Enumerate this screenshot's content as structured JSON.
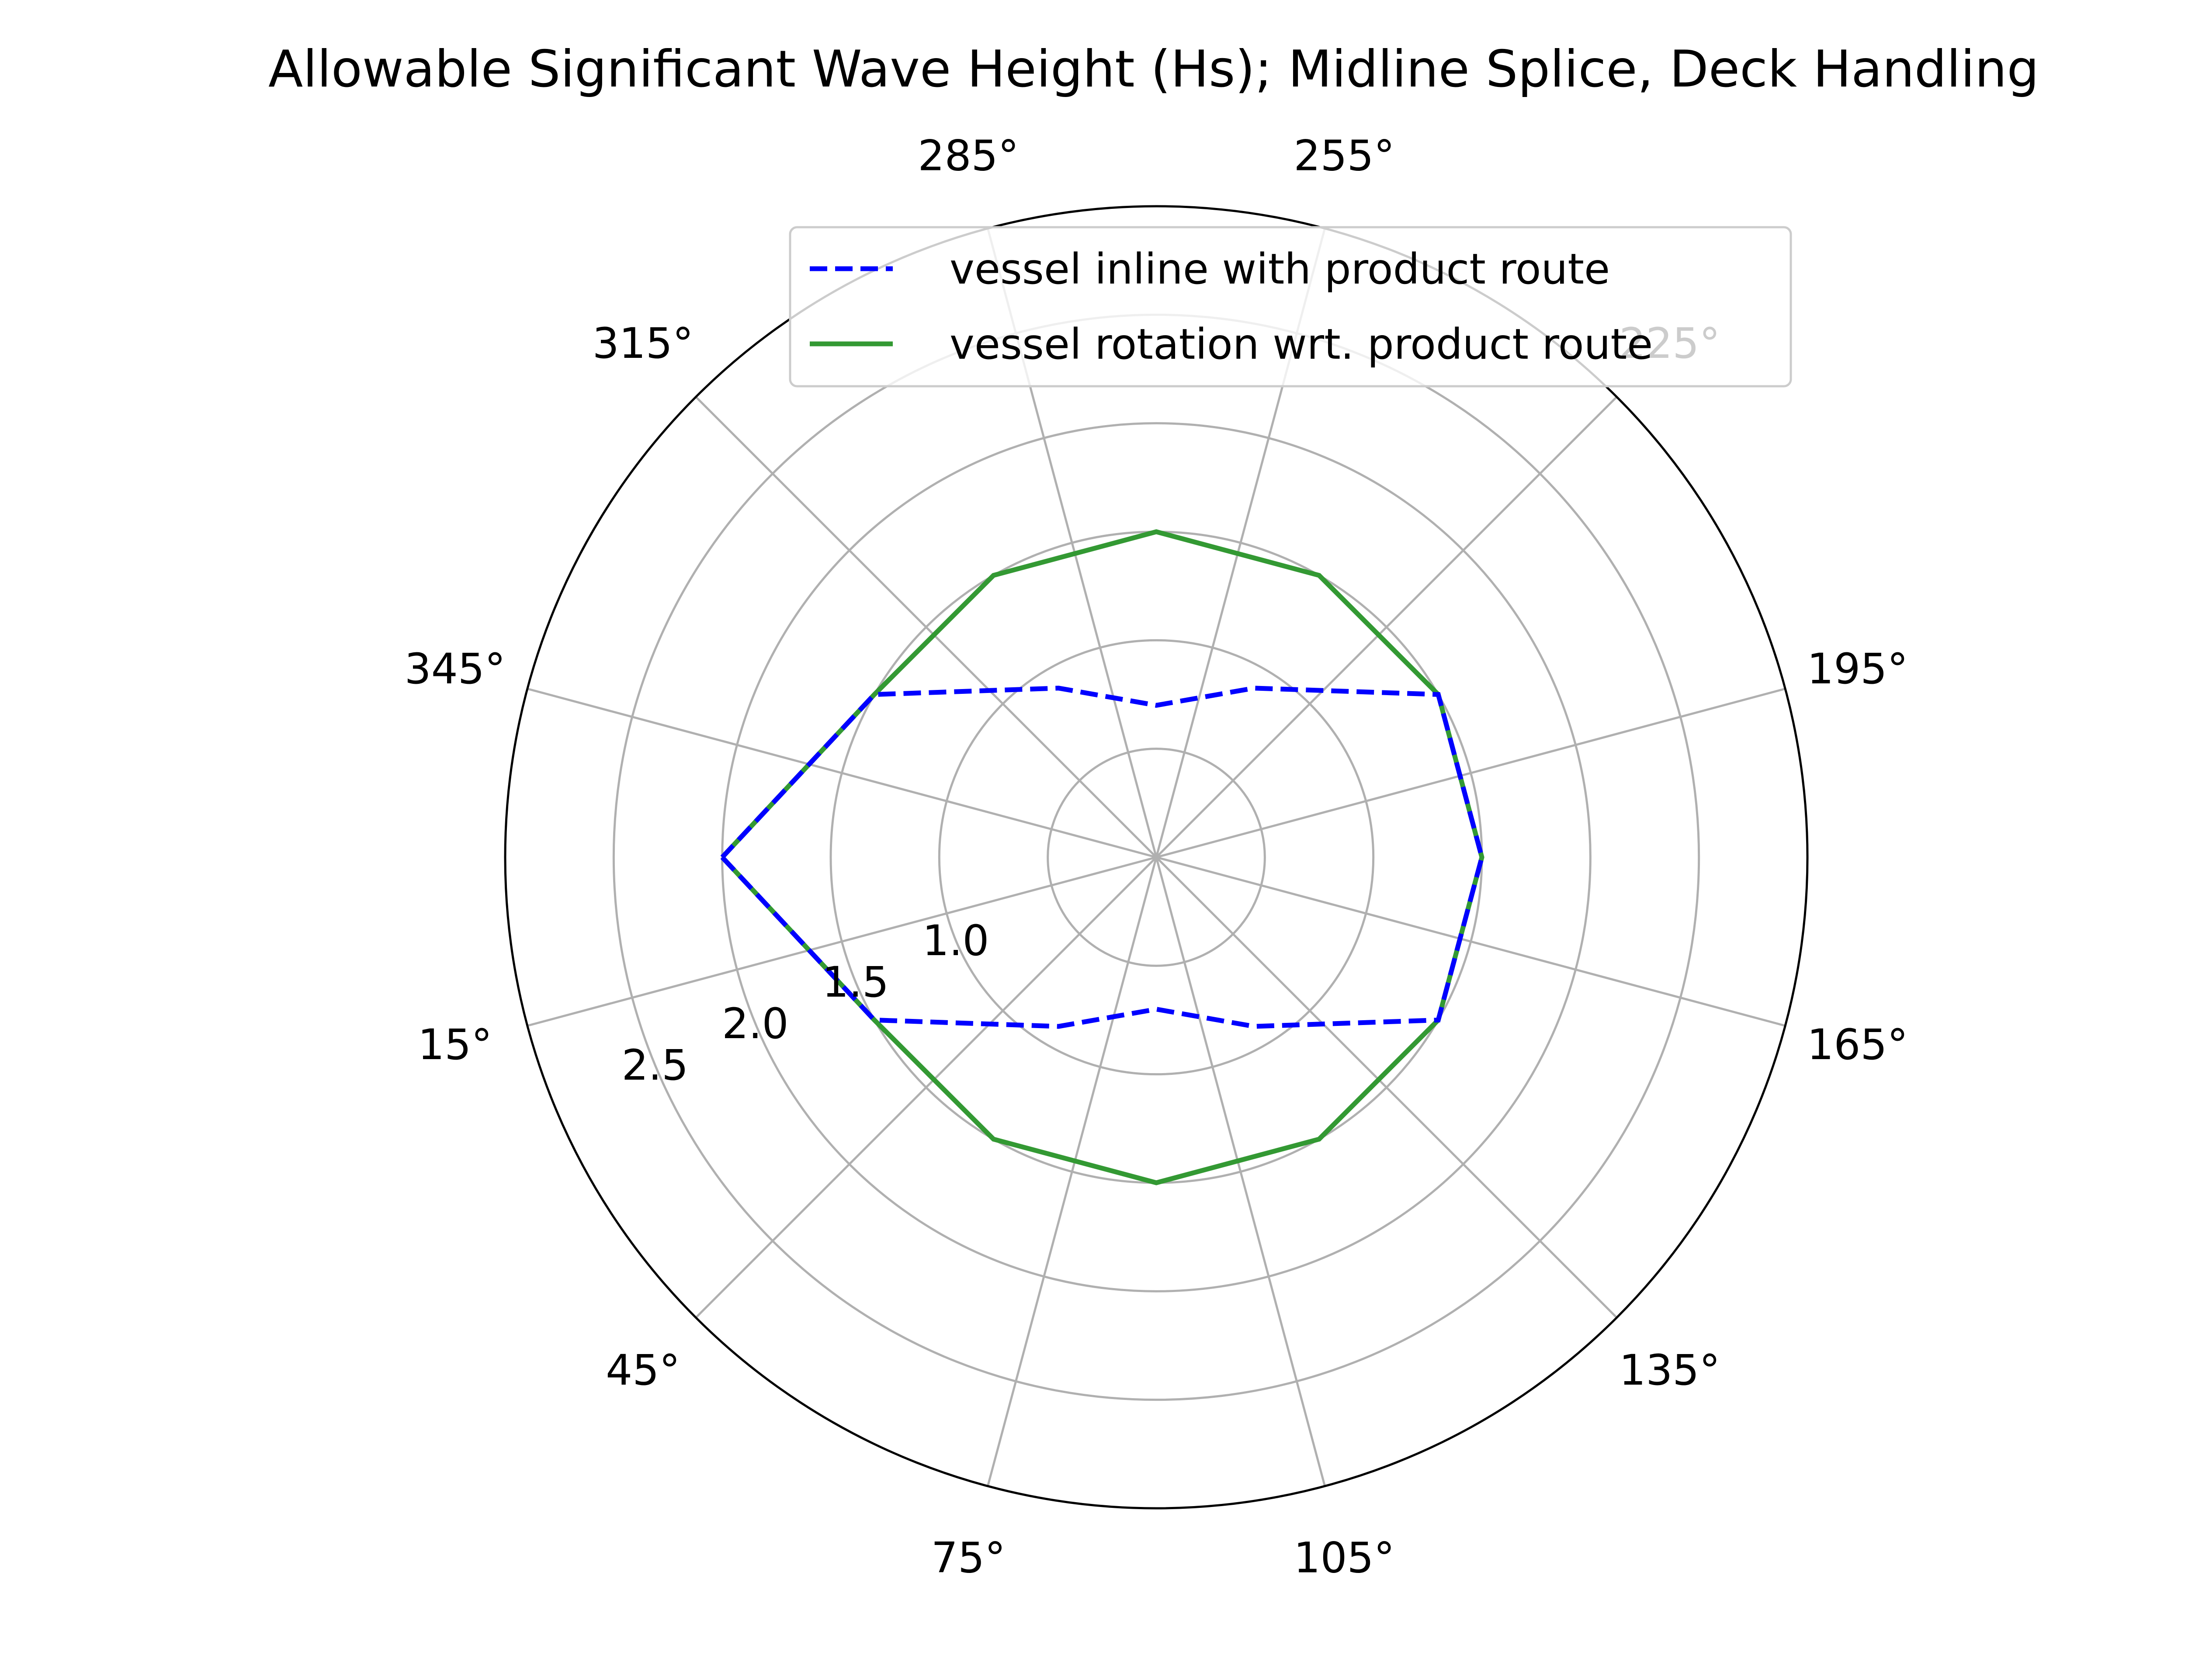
{
  "chart_data": {
    "type": "line",
    "projection": "polar",
    "title": "Allowable Significant Wave Height (Hs); Midline Splice, Deck Handling",
    "theta_zero_location": "W",
    "theta_direction": "counterclockwise",
    "theta_ticks": [
      15,
      45,
      75,
      105,
      135,
      165,
      195,
      225,
      255,
      285,
      315,
      345
    ],
    "theta_tick_labels": [
      "15°",
      "45°",
      "75°",
      "105°",
      "135°",
      "165°",
      "195°",
      "225°",
      "255°",
      "285°",
      "315°",
      "345°"
    ],
    "r_ticks": [
      0.5,
      1.0,
      1.5,
      2.0,
      2.5
    ],
    "r_tick_labels": [
      "",
      "1.0",
      "1.5",
      "2.0",
      "2.5"
    ],
    "r_label_angle": 22.5,
    "rlim": [
      0,
      3.0
    ],
    "grid": true,
    "legend_position": "upper-right",
    "x": [
      0,
      30,
      60,
      90,
      120,
      150,
      180,
      210,
      240,
      270,
      300,
      330,
      360
    ],
    "series": [
      {
        "name": "vessel inline with product route",
        "color": "#0000ff",
        "style": "dashed",
        "values": [
          2.0,
          1.5,
          0.9,
          0.7,
          0.9,
          1.5,
          1.5,
          1.5,
          0.9,
          0.7,
          0.9,
          1.5,
          2.0
        ]
      },
      {
        "name": "vessel rotation wrt. product route",
        "color": "#339933",
        "style": "solid",
        "values": [
          2.0,
          1.5,
          1.5,
          1.5,
          1.5,
          1.5,
          1.5,
          1.5,
          1.5,
          1.5,
          1.5,
          1.5,
          2.0
        ]
      }
    ]
  }
}
